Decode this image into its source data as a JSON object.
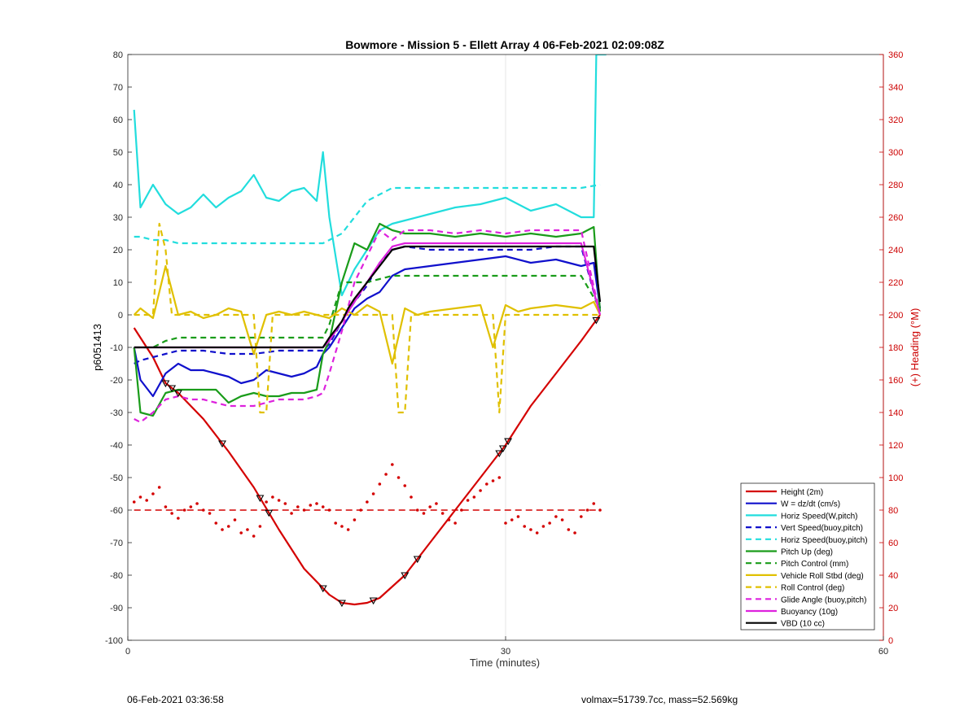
{
  "chart_data": {
    "type": "line",
    "title": "Bowmore - Mission 5 - Ellett Array 4 06-Feb-2021 02:09:08Z",
    "xlabel": "Time (minutes)",
    "ylabel": "p6051413",
    "ylabel_right": "(+) Heading (°M)",
    "xlim": [
      0,
      60
    ],
    "ylim": [
      -100,
      80
    ],
    "ylim_right": [
      0,
      360
    ],
    "x_ticks": [
      0,
      30,
      60
    ],
    "y_ticks": [
      -100,
      -90,
      -80,
      -70,
      -60,
      -50,
      -40,
      -30,
      -20,
      -10,
      0,
      10,
      20,
      30,
      40,
      50,
      60,
      70,
      80
    ],
    "y_ticks_right": [
      0,
      20,
      40,
      60,
      80,
      100,
      120,
      140,
      160,
      180,
      200,
      220,
      240,
      260,
      280,
      300,
      320,
      340,
      360
    ],
    "grid": true,
    "legend_position": "bottom-right",
    "series": [
      {
        "name": "Height (2m)",
        "color": "#d40000",
        "style": "solid",
        "x": [
          0.5,
          2,
          3,
          4,
          6,
          8,
          10,
          12,
          14,
          16,
          17,
          18,
          19,
          20,
          22,
          24,
          26,
          28,
          30,
          32,
          34,
          36,
          37.5
        ],
        "y": [
          -4,
          -13,
          -21,
          -24,
          -32,
          -42,
          -53,
          -66,
          -78,
          -86,
          -88.5,
          -89,
          -88.5,
          -87,
          -80,
          -70,
          -60,
          -50,
          -40,
          -28,
          -18,
          -8,
          0
        ]
      },
      {
        "name": "W = dz/dt (cm/s)",
        "color": "#1010cc",
        "style": "solid",
        "x": [
          0.5,
          1,
          2,
          3,
          4,
          5,
          6,
          7,
          8,
          9,
          10,
          11,
          12,
          13,
          14,
          15,
          15.5,
          16,
          17,
          18,
          19,
          20,
          21,
          22,
          24,
          26,
          28,
          30,
          32,
          34,
          36,
          37,
          37.5
        ],
        "y": [
          -10,
          -20,
          -25,
          -18,
          -15,
          -17,
          -17,
          -18,
          -19,
          -21,
          -20,
          -17,
          -18,
          -19,
          -18,
          -16,
          -12,
          -10,
          -4,
          2,
          5,
          7,
          12,
          14,
          15,
          16,
          17,
          18,
          16,
          17,
          15,
          16,
          2
        ]
      },
      {
        "name": "Horiz Speed(W,pitch)",
        "color": "#22dddd",
        "style": "solid",
        "x": [
          0.5,
          1,
          2,
          3,
          4,
          5,
          6,
          7,
          8,
          9,
          10,
          11,
          12,
          13,
          14,
          15,
          15.5,
          16,
          17,
          18,
          19,
          20,
          21,
          22,
          24,
          26,
          28,
          30,
          32,
          34,
          36,
          37,
          37.2,
          37.5,
          38
        ],
        "y": [
          63,
          33,
          40,
          34,
          31,
          33,
          37,
          33,
          36,
          38,
          43,
          36,
          35,
          38,
          39,
          35,
          50,
          30,
          6,
          14,
          20,
          26,
          28,
          29,
          31,
          33,
          34,
          36,
          32,
          34,
          30,
          30,
          80,
          80,
          80
        ]
      },
      {
        "name": "Vert Speed(buoy,pitch)",
        "color": "#1010cc",
        "style": "dashed",
        "x": [
          0.5,
          1,
          2,
          3,
          4,
          6,
          8,
          10,
          12,
          14,
          15.5,
          16,
          17,
          18,
          19,
          20,
          21,
          22,
          24,
          26,
          28,
          30,
          32,
          34,
          36,
          37.5
        ],
        "y": [
          -15,
          -14,
          -13,
          -12,
          -11,
          -11,
          -12,
          -12,
          -11,
          -11,
          -11,
          -9,
          -2,
          4,
          9,
          16,
          20,
          21,
          20,
          20,
          20,
          20,
          20,
          21,
          21,
          0
        ]
      },
      {
        "name": "Horiz Speed(buoy,pitch)",
        "color": "#22dddd",
        "style": "dashed",
        "x": [
          0.5,
          1,
          2,
          3,
          4,
          6,
          8,
          10,
          12,
          14,
          15.5,
          16,
          17,
          18,
          19,
          20,
          21,
          22,
          24,
          26,
          28,
          30,
          32,
          34,
          36,
          37.5
        ],
        "y": [
          24,
          24,
          23,
          23,
          22,
          22,
          22,
          22,
          22,
          22,
          22,
          23,
          25,
          30,
          35,
          37,
          39,
          39,
          39,
          39,
          39,
          39,
          39,
          39,
          39,
          40
        ]
      },
      {
        "name": "Pitch Up (deg)",
        "color": "#1a9c1a",
        "style": "solid",
        "x": [
          0.5,
          1,
          2,
          3,
          4,
          5,
          6,
          7,
          8,
          9,
          10,
          11,
          12,
          13,
          14,
          15,
          15.5,
          16,
          17,
          18,
          19,
          20,
          21,
          22,
          24,
          26,
          28,
          30,
          32,
          34,
          36,
          37,
          37.5
        ],
        "y": [
          -10,
          -30,
          -31,
          -24,
          -23,
          -23,
          -23,
          -23,
          -27,
          -25,
          -24,
          -25,
          -25,
          -24,
          -24,
          -23,
          -12,
          -8,
          10,
          22,
          20,
          28,
          26,
          25,
          25,
          24,
          25,
          24,
          25,
          24,
          25,
          27,
          1
        ]
      },
      {
        "name": "Pitch Control (mm)",
        "color": "#1a9c1a",
        "style": "dashed",
        "x": [
          0.5,
          2,
          3,
          4,
          6,
          8,
          10,
          12,
          14,
          15.5,
          16,
          17,
          18,
          19,
          20,
          21,
          22,
          24,
          26,
          28,
          30,
          32,
          34,
          36,
          37.5
        ],
        "y": [
          -10,
          -10,
          -8,
          -7,
          -7,
          -7,
          -7,
          -7,
          -7,
          -7,
          -3,
          10,
          10,
          10,
          11,
          12,
          12,
          12,
          12,
          12,
          12,
          12,
          12,
          12,
          2
        ]
      },
      {
        "name": "Vehicle Roll Stbd (deg)",
        "color": "#e0c000",
        "style": "solid",
        "x": [
          0.5,
          1,
          2,
          3,
          4,
          5,
          6,
          7,
          8,
          9,
          10,
          11,
          12,
          13,
          14,
          15,
          16,
          17,
          18,
          19,
          20,
          21,
          22,
          23,
          24,
          26,
          28,
          29,
          30,
          31,
          32,
          34,
          36,
          37,
          37.5
        ],
        "y": [
          0,
          2,
          -1,
          15,
          0,
          1,
          -1,
          0,
          2,
          1,
          -12,
          0,
          1,
          0,
          1,
          0,
          -1,
          2,
          0,
          3,
          1,
          -15,
          2,
          0,
          1,
          2,
          3,
          -10,
          3,
          1,
          2,
          3,
          2,
          4,
          0
        ]
      },
      {
        "name": "Roll Control (deg)",
        "color": "#e0c000",
        "style": "dashed",
        "x": [
          0.5,
          2,
          2.5,
          3,
          3.5,
          4,
          6,
          8,
          10,
          10.5,
          11,
          11.5,
          12,
          14,
          16,
          17,
          18,
          20,
          21,
          21.5,
          22,
          22.5,
          23,
          26,
          28,
          29,
          29.5,
          30,
          32,
          34,
          36,
          37.5
        ],
        "y": [
          0,
          0,
          28,
          20,
          0,
          0,
          0,
          0,
          0,
          -30,
          -30,
          0,
          0,
          0,
          0,
          0,
          0,
          0,
          0,
          -30,
          -30,
          0,
          0,
          0,
          0,
          0,
          -30,
          0,
          0,
          0,
          0,
          0
        ]
      },
      {
        "name": "Glide Angle (buoy,pitch)",
        "color": "#dd22dd",
        "style": "dashed",
        "x": [
          0.5,
          1,
          2,
          3,
          4,
          5,
          6,
          7,
          8,
          9,
          10,
          11,
          12,
          13,
          14,
          15,
          15.5,
          16,
          17,
          18,
          19,
          20,
          21,
          22,
          24,
          26,
          28,
          30,
          32,
          34,
          36,
          37.5
        ],
        "y": [
          -32,
          -33,
          -30,
          -26,
          -25,
          -26,
          -26,
          -27,
          -28,
          -28,
          -28,
          -27,
          -26,
          -26,
          -26,
          -25,
          -24,
          -18,
          -5,
          10,
          18,
          26,
          23,
          26,
          26,
          25,
          26,
          25,
          26,
          26,
          26,
          0
        ]
      },
      {
        "name": "Buoyancy (10g)",
        "color": "#dd22dd",
        "style": "solid",
        "x": [
          0.5,
          2,
          4,
          6,
          8,
          10,
          12,
          14,
          15.5,
          16,
          17,
          18,
          19,
          20,
          21,
          22,
          24,
          26,
          28,
          30,
          32,
          34,
          36,
          37.5
        ],
        "y": [
          -10,
          -10,
          -10,
          -10,
          -10,
          -10,
          -10,
          -10,
          -10,
          -8,
          -2,
          4,
          10,
          16,
          21,
          22,
          22,
          22,
          22,
          22,
          22,
          22,
          22,
          0
        ]
      },
      {
        "name": "VBD (10 cc)",
        "color": "#000000",
        "style": "solid",
        "x": [
          0.5,
          2,
          4,
          6,
          8,
          10,
          12,
          14,
          15.5,
          16,
          17,
          17.5,
          18,
          19,
          20,
          21,
          22,
          24,
          26,
          28,
          30,
          32,
          34,
          36,
          37,
          37.5
        ],
        "y": [
          -10,
          -10,
          -10,
          -10,
          -10,
          -10,
          -10,
          -10,
          -10,
          -7,
          -2,
          2,
          5,
          10,
          15,
          20,
          21,
          21,
          21,
          21,
          21,
          21,
          21,
          21,
          21,
          4
        ]
      }
    ],
    "heading_series": {
      "color": "#d40000",
      "reference_heading": 80,
      "x": [
        0.5,
        1,
        1.5,
        2,
        2.5,
        3,
        3.5,
        4,
        4.5,
        5,
        5.5,
        6,
        6.5,
        7,
        7.5,
        8,
        8.5,
        9,
        9.5,
        10,
        10.5,
        11,
        11.5,
        12,
        12.5,
        13,
        13.5,
        14,
        14.5,
        15,
        15.5,
        16,
        16.5,
        17,
        17.5,
        18,
        18.5,
        19,
        19.5,
        20,
        20.5,
        21,
        21.5,
        22,
        22.5,
        23,
        23.5,
        24,
        24.5,
        25,
        25.5,
        26,
        26.5,
        27,
        27.5,
        28,
        28.5,
        29,
        29.5,
        30,
        30.5,
        31,
        31.5,
        32,
        32.5,
        33,
        33.5,
        34,
        34.5,
        35,
        35.5,
        36,
        36.5,
        37,
        37.5
      ],
      "y": [
        85,
        88,
        86,
        90,
        94,
        82,
        78,
        75,
        80,
        82,
        84,
        80,
        78,
        72,
        68,
        70,
        74,
        66,
        68,
        64,
        70,
        85,
        88,
        86,
        84,
        78,
        82,
        80,
        83,
        84,
        82,
        80,
        72,
        70,
        68,
        74,
        80,
        85,
        90,
        96,
        102,
        108,
        100,
        95,
        88,
        80,
        78,
        82,
        84,
        78,
        74,
        72,
        80,
        86,
        88,
        92,
        96,
        98,
        100,
        72,
        74,
        76,
        70,
        68,
        66,
        70,
        72,
        76,
        74,
        68,
        66,
        76,
        80,
        84,
        80
      ]
    },
    "height_markers_x": [
      3,
      3.5,
      4,
      7.5,
      10.5,
      11.2,
      15.5,
      17,
      19.5,
      22,
      23,
      29.5,
      29.8,
      30.2,
      37.2
    ]
  },
  "footer": {
    "left": "06-Feb-2021 03:36:58",
    "right": "volmax=51739.7cc, mass=52.569kg"
  }
}
